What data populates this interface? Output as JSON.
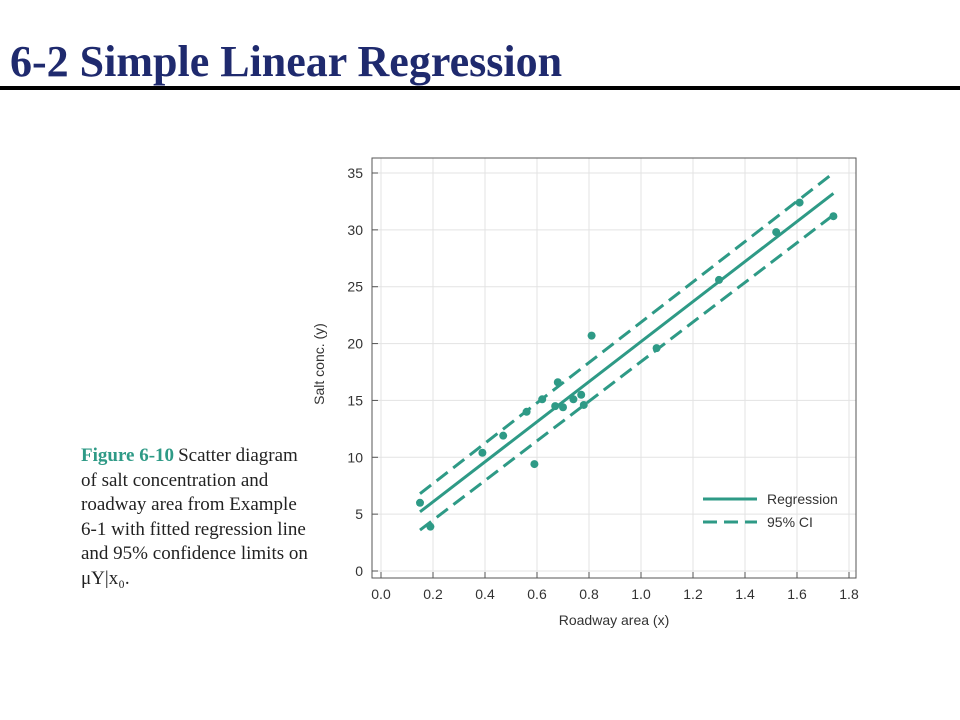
{
  "slide": {
    "title": "6-2   Simple Linear Regression"
  },
  "caption": {
    "figure_label": "Figure 6-10",
    "text": "Scatter diagram of salt concentration and roadway area from Example 6-1 with fitted regression line and 95% confidence limits on μY|x₀."
  },
  "colors": {
    "accent": "#2e9a86",
    "title": "#1f2a6e"
  },
  "chart_data": {
    "type": "scatter",
    "title": "",
    "xlabel": "Roadway area (x)",
    "ylabel": "Salt conc. (y)",
    "xlim": [
      0.0,
      1.8
    ],
    "ylim": [
      0,
      35
    ],
    "xticks": [
      "0.0",
      "0.2",
      "0.4",
      "0.6",
      "0.8",
      "1.0",
      "1.2",
      "1.4",
      "1.6",
      "1.8"
    ],
    "yticks": [
      "0",
      "5",
      "10",
      "15",
      "20",
      "25",
      "30",
      "35"
    ],
    "grid": true,
    "legend_position": "bottom-right",
    "points": [
      [
        0.15,
        6.0
      ],
      [
        0.19,
        3.9
      ],
      [
        0.39,
        10.4
      ],
      [
        0.47,
        11.9
      ],
      [
        0.56,
        14.0
      ],
      [
        0.59,
        9.4
      ],
      [
        0.62,
        15.1
      ],
      [
        0.67,
        14.5
      ],
      [
        0.68,
        16.6
      ],
      [
        0.7,
        14.4
      ],
      [
        0.74,
        15.1
      ],
      [
        0.77,
        15.5
      ],
      [
        0.78,
        14.6
      ],
      [
        0.81,
        20.7
      ],
      [
        1.06,
        19.6
      ],
      [
        1.3,
        25.6
      ],
      [
        1.52,
        29.8
      ],
      [
        1.61,
        32.4
      ],
      [
        1.74,
        31.2
      ]
    ],
    "series": [
      {
        "name": "Regression",
        "style": "solid",
        "x": [
          0.15,
          1.74
        ],
        "y": [
          5.2,
          33.2
        ]
      },
      {
        "name": "95% CI",
        "style": "dashed",
        "x": [
          0.15,
          1.74
        ],
        "y": [
          6.8,
          35.0
        ]
      },
      {
        "name": "",
        "style": "dashed",
        "x": [
          0.15,
          1.74
        ],
        "y": [
          3.6,
          31.3
        ]
      }
    ]
  }
}
